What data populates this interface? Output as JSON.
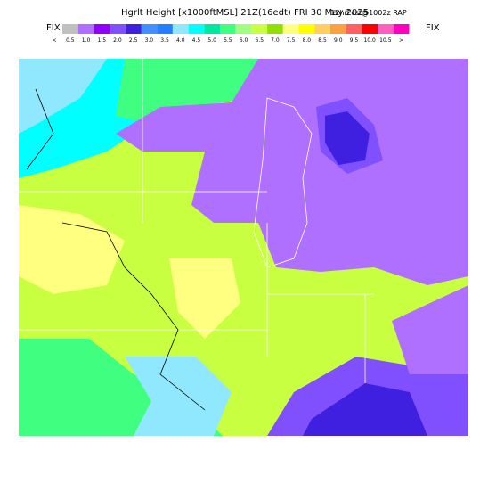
{
  "header": {
    "title": "Hgrlt Height [x1000ftMSL] 21Z(16edt) FRI 30 May 2025",
    "run": "12hrFcst@1002z RAP",
    "left_label": "FIX",
    "right_label": "FIX"
  },
  "colorbar": {
    "colors": [
      "#c0c0c0",
      "#b070ff",
      "#9000ff",
      "#8050ff",
      "#4020e0",
      "#4090ff",
      "#2080ff",
      "#90e8ff",
      "#00ffff",
      "#00e8a0",
      "#40ff80",
      "#a0ff80",
      "#c8ff40",
      "#90e000",
      "#ffff80",
      "#ffff00",
      "#ffd060",
      "#ffa040",
      "#ff6060",
      "#ff0000",
      "#ff60c0",
      "#ff00c0"
    ],
    "labels": [
      "<",
      "0.5",
      "1.0",
      "1.5",
      "2.0",
      "2.5",
      "3.0",
      "3.5",
      "4.0",
      "4.5",
      "5.0",
      "5.5",
      "6.0",
      "6.5",
      "7.0",
      "7.5",
      "8.0",
      "8.5",
      "9.0",
      "9.5",
      "10.0",
      "10.5",
      ">"
    ]
  }
}
